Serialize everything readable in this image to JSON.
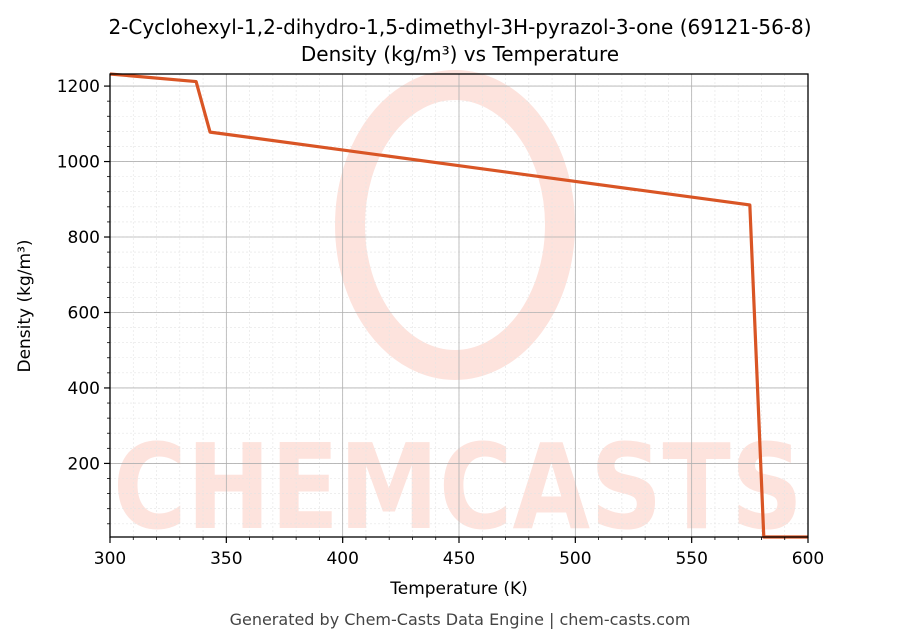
{
  "chart_data": {
    "type": "line",
    "title": "2-Cyclohexyl-1,2-dihydro-1,5-dimethyl-3H-pyrazol-3-one (69121-56-8)",
    "subtitle": "Density (kg/m³) vs Temperature",
    "xlabel": "Temperature (K)",
    "ylabel": "Density (kg/m³)",
    "xlim": [
      300,
      600
    ],
    "ylim": [
      5,
      1232
    ],
    "xticks": [
      300,
      350,
      400,
      450,
      500,
      550,
      600
    ],
    "yticks": [
      200,
      400,
      600,
      800,
      1000,
      1200
    ],
    "grid": "major and minor",
    "series": [
      {
        "color": "#d95525",
        "x": [
          300,
          337,
          343,
          575,
          581,
          600
        ],
        "y": [
          1232,
          1212,
          1078,
          885,
          5,
          5
        ]
      }
    ]
  },
  "watermark": "CHEMCASTS",
  "footer": "Generated by Chem-Casts Data Engine | chem-casts.com"
}
